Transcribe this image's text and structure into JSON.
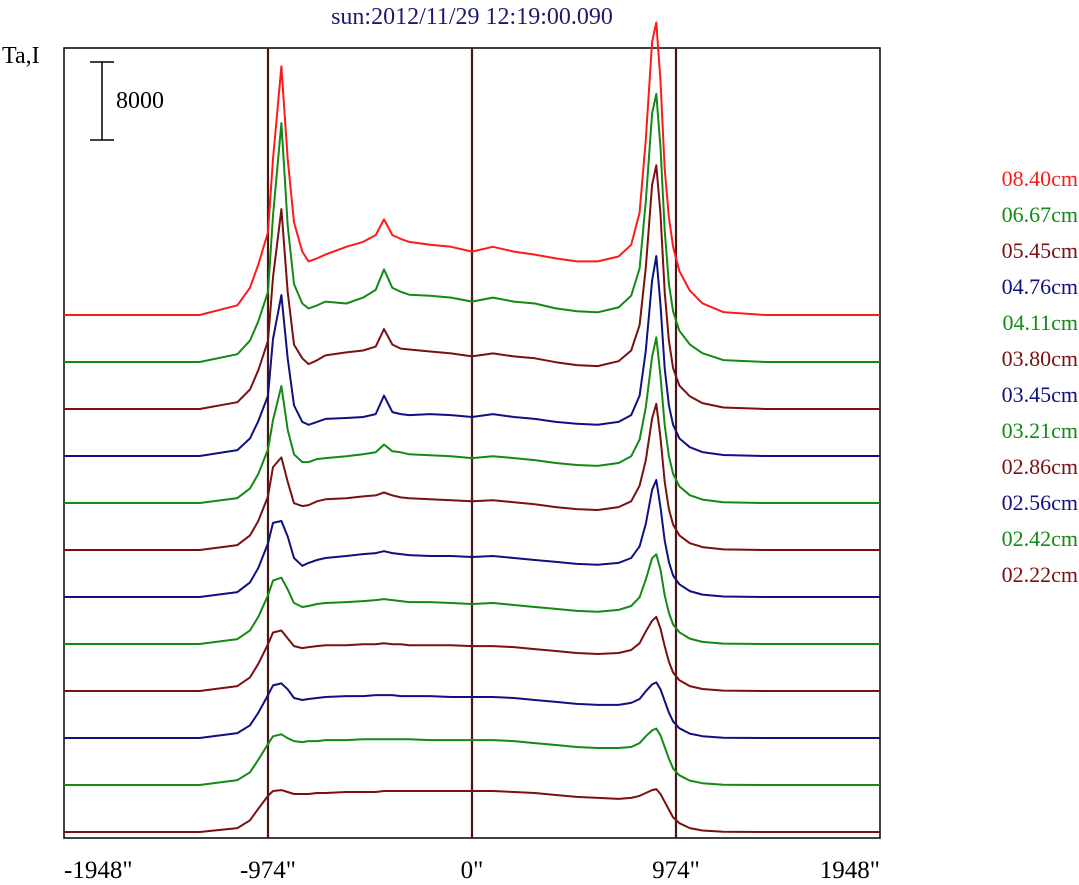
{
  "chart_data": {
    "type": "line",
    "title": "sun:2012/11/29 12:19:00.090",
    "ylabel": "Ta,I",
    "xlabel": "",
    "xlim": [
      -1948,
      1948
    ],
    "x_ticks": [
      -1948,
      -974,
      0,
      974,
      1948
    ],
    "x_tick_labels": [
      "-1948\"",
      "-974\"",
      "0\"",
      "974\"",
      "1948\""
    ],
    "vertical_markers": [
      -974,
      0,
      974
    ],
    "scale_bar": {
      "label": "8000",
      "value": 8000
    },
    "grid": false,
    "legend_position": "right",
    "x": [
      -1948,
      -1700,
      -1300,
      -1120,
      -1060,
      -1020,
      -974,
      -950,
      -910,
      -880,
      -850,
      -810,
      -780,
      -740,
      -700,
      -600,
      -520,
      -460,
      -420,
      -380,
      -340,
      -300,
      -200,
      -100,
      0,
      100,
      200,
      300,
      400,
      500,
      600,
      700,
      760,
      800,
      830,
      860,
      880,
      900,
      920,
      940,
      960,
      990,
      1040,
      1100,
      1200,
      1400,
      1600,
      1948
    ],
    "series": [
      {
        "name": "08.40cm",
        "color": "#ff1a1a",
        "values": [
          0,
          0,
          0,
          1000,
          2800,
          5200,
          8500,
          16000,
          25500,
          16000,
          9500,
          6500,
          5500,
          5800,
          6200,
          7000,
          7500,
          8200,
          9800,
          8200,
          7800,
          7500,
          7200,
          7000,
          6500,
          7000,
          6500,
          6200,
          5800,
          5500,
          5500,
          6000,
          7200,
          10500,
          18000,
          28000,
          30000,
          24000,
          15000,
          10000,
          7000,
          4500,
          2500,
          1200,
          300,
          0,
          0,
          0
        ]
      },
      {
        "name": "06.67cm",
        "color": "#138a13",
        "values": [
          0,
          0,
          0,
          800,
          2200,
          4200,
          7200,
          15000,
          24500,
          14000,
          8000,
          6000,
          5500,
          5800,
          6200,
          6000,
          6600,
          7400,
          9500,
          7600,
          7200,
          6900,
          6800,
          6600,
          6200,
          6600,
          6200,
          6000,
          5500,
          5200,
          5100,
          5600,
          6800,
          9600,
          16500,
          25500,
          27500,
          22000,
          13500,
          8000,
          5200,
          3200,
          1800,
          900,
          200,
          0,
          0,
          0
        ]
      },
      {
        "name": "05.45cm",
        "color": "#7a1010",
        "values": [
          0,
          0,
          0,
          700,
          2000,
          4000,
          7000,
          13500,
          20500,
          12000,
          6600,
          5200,
          4600,
          5000,
          5500,
          5800,
          6000,
          6400,
          8200,
          6600,
          6200,
          6100,
          5900,
          5700,
          5400,
          5700,
          5400,
          5200,
          4800,
          4500,
          4400,
          4900,
          6000,
          8600,
          14500,
          23000,
          25000,
          20000,
          12000,
          7000,
          4200,
          2400,
          1300,
          600,
          150,
          0,
          0,
          0
        ]
      },
      {
        "name": "04.76cm",
        "color": "#101080",
        "values": [
          0,
          0,
          0,
          600,
          1800,
          3600,
          6200,
          12000,
          16500,
          10000,
          5200,
          3500,
          3200,
          3500,
          3800,
          3900,
          4000,
          4300,
          6200,
          4500,
          4300,
          4200,
          4300,
          4200,
          4000,
          4300,
          4000,
          3800,
          3500,
          3300,
          3200,
          3500,
          4200,
          6200,
          10800,
          18000,
          20500,
          15500,
          9000,
          5200,
          3200,
          1800,
          900,
          400,
          100,
          0,
          0,
          0
        ]
      },
      {
        "name": "04.11cm",
        "color": "#138a13",
        "values": [
          0,
          0,
          0,
          500,
          1500,
          3000,
          5500,
          8500,
          12000,
          7500,
          5000,
          4200,
          4200,
          4500,
          4600,
          4800,
          5000,
          5200,
          6000,
          5300,
          5200,
          5000,
          4900,
          4800,
          4600,
          4800,
          4600,
          4400,
          4100,
          3900,
          3800,
          4100,
          4800,
          6500,
          9800,
          15000,
          17000,
          13000,
          8000,
          4800,
          3000,
          1700,
          800,
          350,
          80,
          0,
          0,
          0
        ]
      },
      {
        "name": "03.80cm",
        "color": "#7a1010",
        "values": [
          0,
          0,
          0,
          500,
          1500,
          3000,
          5500,
          8500,
          9500,
          7000,
          4800,
          4500,
          4600,
          5000,
          5200,
          5300,
          5500,
          5600,
          5900,
          5600,
          5400,
          5300,
          5200,
          5100,
          5000,
          5100,
          4900,
          4700,
          4400,
          4200,
          4100,
          4400,
          5000,
          6600,
          9200,
          13500,
          15000,
          11500,
          7000,
          4200,
          2600,
          1500,
          700,
          300,
          60,
          0,
          0,
          0
        ]
      },
      {
        "name": "03.45cm",
        "color": "#101080",
        "values": [
          0,
          0,
          0,
          500,
          1500,
          3000,
          5500,
          7600,
          7800,
          6200,
          4000,
          3200,
          3500,
          3800,
          4000,
          4200,
          4400,
          4500,
          4700,
          4500,
          4400,
          4300,
          4200,
          4200,
          4100,
          4200,
          4000,
          3800,
          3600,
          3400,
          3300,
          3500,
          4000,
          5200,
          7500,
          11000,
          12000,
          9200,
          5800,
          3600,
          2200,
          1300,
          600,
          250,
          50,
          0,
          0,
          0
        ]
      },
      {
        "name": "03.21cm",
        "color": "#138a13",
        "values": [
          0,
          0,
          0,
          500,
          1400,
          2800,
          5000,
          6500,
          6800,
          5600,
          4200,
          3800,
          3900,
          4100,
          4200,
          4300,
          4400,
          4500,
          4600,
          4500,
          4400,
          4300,
          4300,
          4200,
          4100,
          4200,
          4000,
          3800,
          3600,
          3400,
          3300,
          3500,
          3900,
          4800,
          6600,
          8800,
          9200,
          7600,
          5000,
          3200,
          2000,
          1200,
          550,
          220,
          40,
          0,
          0,
          0
        ]
      },
      {
        "name": "02.86cm",
        "color": "#7a1010",
        "values": [
          0,
          0,
          0,
          500,
          1400,
          2800,
          4800,
          6000,
          6200,
          5400,
          4600,
          4400,
          4500,
          4600,
          4700,
          4700,
          4800,
          4800,
          4900,
          4800,
          4800,
          4700,
          4700,
          4700,
          4600,
          4600,
          4500,
          4300,
          4100,
          3900,
          3800,
          3900,
          4200,
          4900,
          6100,
          7200,
          7600,
          6400,
          4600,
          3000,
          1900,
          1100,
          500,
          200,
          40,
          0,
          0,
          0
        ]
      },
      {
        "name": "02.56cm",
        "color": "#101080",
        "values": [
          0,
          0,
          0,
          500,
          1300,
          2600,
          4400,
          5400,
          5600,
          5000,
          4100,
          3900,
          4000,
          4100,
          4200,
          4300,
          4300,
          4400,
          4400,
          4400,
          4300,
          4300,
          4300,
          4200,
          4200,
          4200,
          4100,
          3900,
          3700,
          3500,
          3400,
          3400,
          3600,
          4000,
          4800,
          5500,
          5700,
          5000,
          3800,
          2600,
          1700,
          1000,
          450,
          180,
          30,
          0,
          0,
          0
        ]
      },
      {
        "name": "02.42cm",
        "color": "#138a13",
        "values": [
          0,
          0,
          0,
          500,
          1300,
          2600,
          4200,
          5000,
          5200,
          4800,
          4500,
          4400,
          4500,
          4500,
          4600,
          4600,
          4700,
          4700,
          4700,
          4700,
          4700,
          4700,
          4600,
          4600,
          4600,
          4600,
          4500,
          4300,
          4100,
          3900,
          3800,
          3800,
          3900,
          4300,
          5000,
          5600,
          5800,
          5100,
          3900,
          2700,
          1700,
          1000,
          450,
          180,
          30,
          0,
          0,
          0
        ]
      },
      {
        "name": "02.22cm",
        "color": "#7a1010",
        "values": [
          0,
          0,
          0,
          400,
          1200,
          2400,
          3700,
          4200,
          4300,
          4100,
          3900,
          3900,
          3900,
          4000,
          4000,
          4100,
          4100,
          4100,
          4200,
          4200,
          4200,
          4200,
          4200,
          4200,
          4200,
          4200,
          4100,
          4000,
          3800,
          3600,
          3500,
          3400,
          3500,
          3700,
          4000,
          4300,
          4400,
          3900,
          3100,
          2300,
          1500,
          900,
          400,
          150,
          30,
          0,
          0,
          0
        ]
      }
    ]
  }
}
